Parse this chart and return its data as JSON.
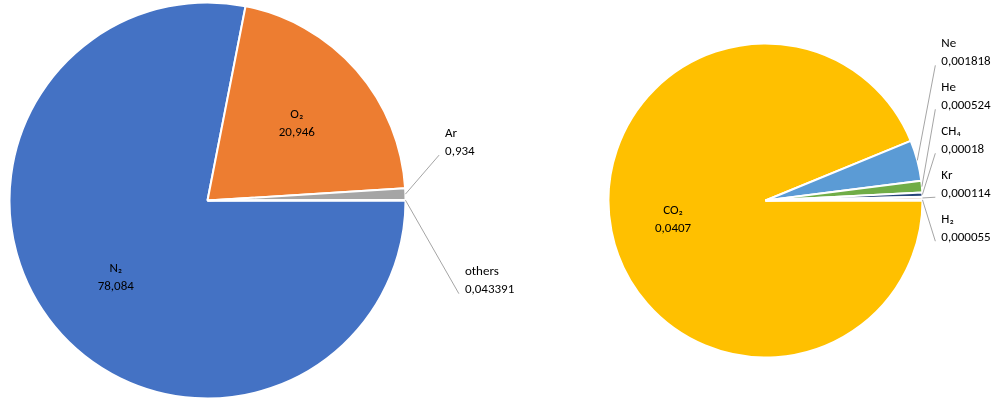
{
  "chart_data": [
    {
      "type": "pie",
      "categories": [
        "N₂",
        "O₂",
        "Ar",
        "others"
      ],
      "values": [
        78.084,
        20.946,
        0.934,
        0.043391
      ],
      "colors": [
        "#4472c4",
        "#ed7d31",
        "#a5a5a5",
        "#a5a5a5"
      ],
      "value_labels": [
        "78,084",
        "20,946",
        "0,934",
        "0,043391"
      ]
    },
    {
      "type": "pie",
      "categories": [
        "CO₂",
        "Ne",
        "He",
        "CH₄",
        "Kr",
        "H₂"
      ],
      "values": [
        0.0407,
        0.001818,
        0.000524,
        0.00018,
        0.000114,
        5.5e-05
      ],
      "colors": [
        "#ffc000",
        "#5b9bd5",
        "#70ad47",
        "#264478",
        "#9e480e",
        "#636363"
      ],
      "value_labels": [
        "0,0407",
        "0,001818",
        "0,000524",
        "0,00018",
        "0,000114",
        "0,000055"
      ]
    }
  ]
}
